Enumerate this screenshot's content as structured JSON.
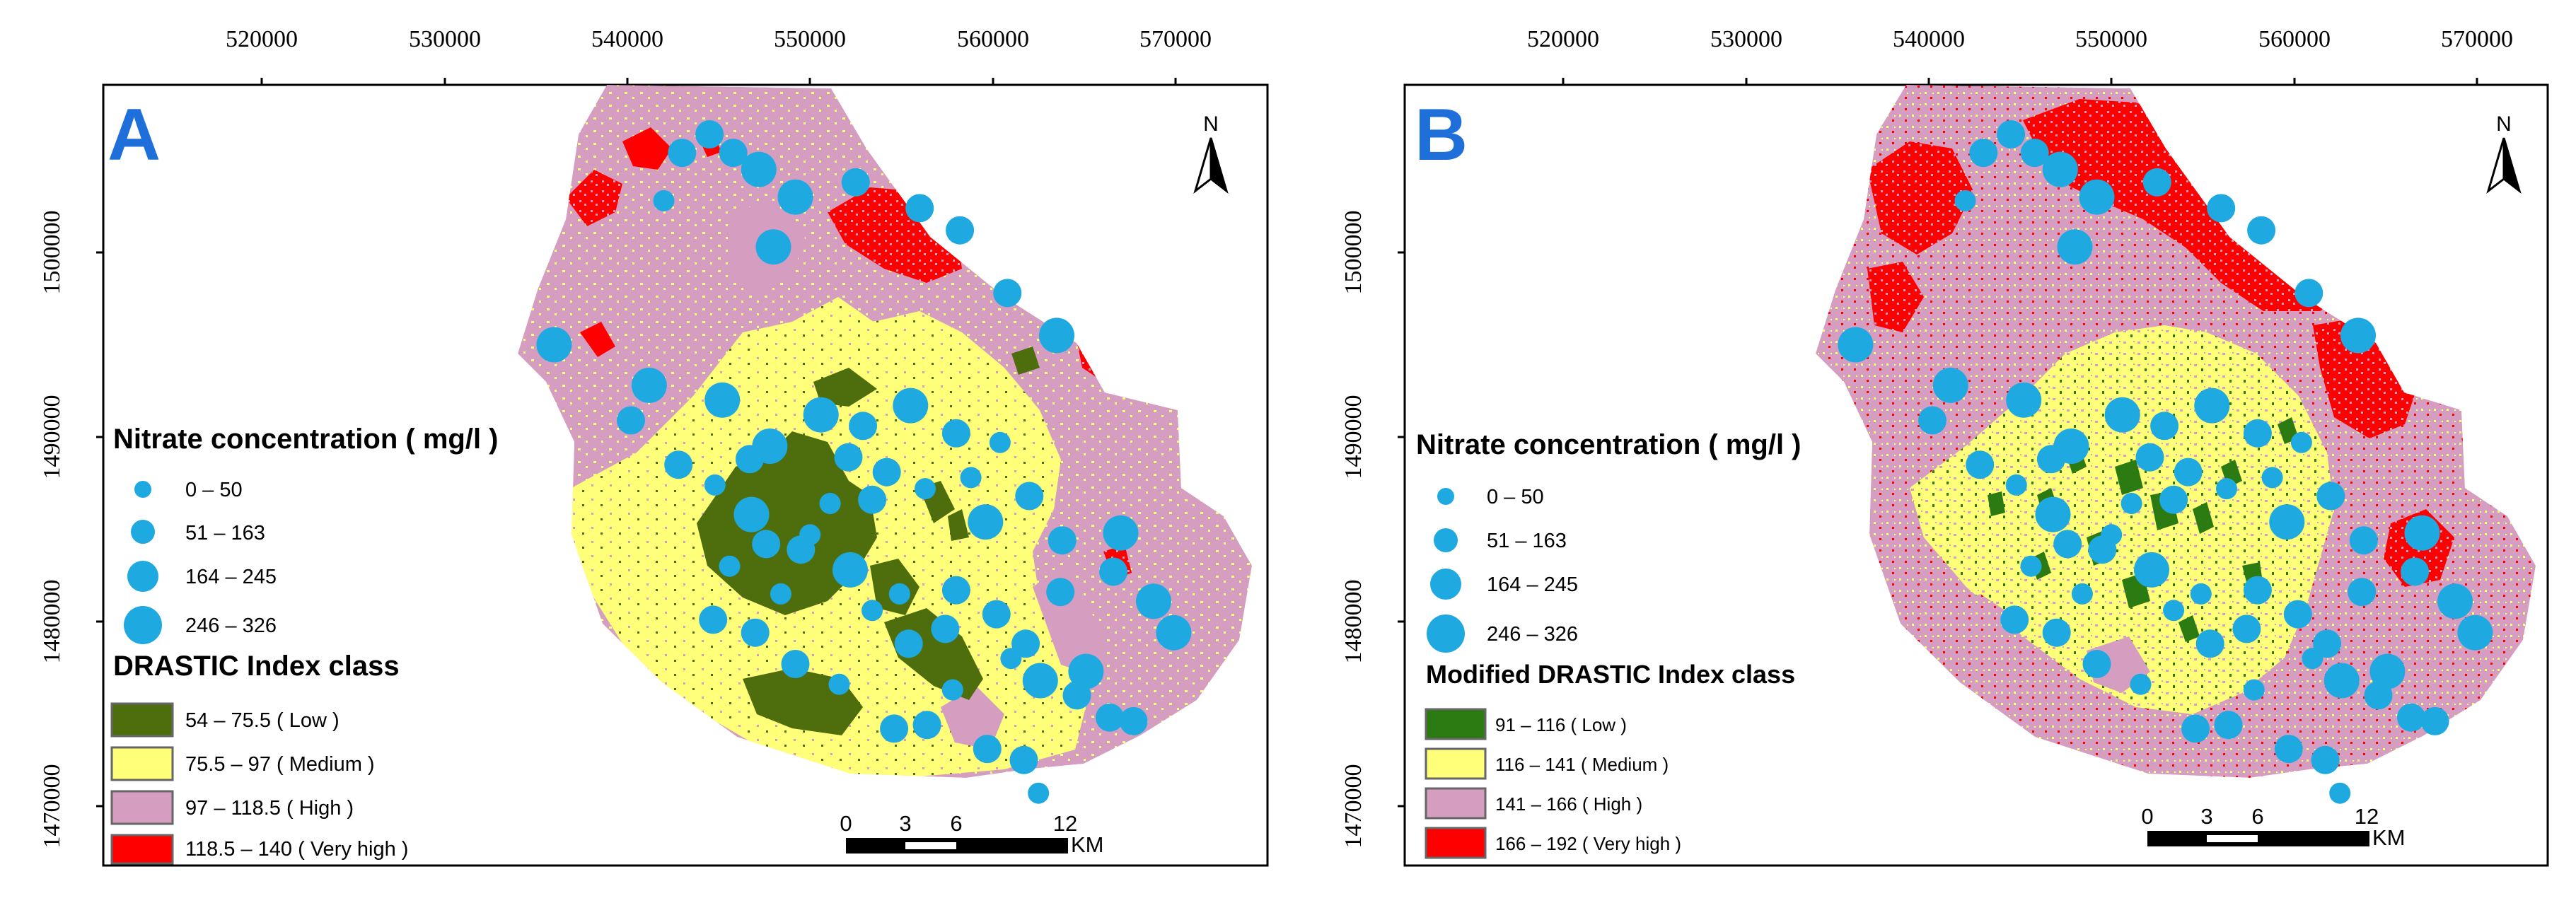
{
  "colors": {
    "low_a": "#4e6e0e",
    "low_b": "#2b7a12",
    "medium": "#ffff7a",
    "high": "#d59ec1",
    "very_high": "#ff0000",
    "well": "#1fa9e1",
    "panel_letter": "#1e6fd9"
  },
  "axes": {
    "x_ticks": [
      "520000",
      "530000",
      "540000",
      "550000",
      "560000",
      "570000"
    ],
    "y_ticks": [
      "1500000",
      "1490000",
      "1480000",
      "1470000"
    ]
  },
  "nitrate_legend": {
    "title": "Nitrate concentration ( mg/l )",
    "classes": [
      "0 – 50",
      "51 – 163",
      "164 – 245",
      "246 – 326"
    ]
  },
  "north_arrow": {
    "label": "N",
    "icon": "north-arrow-icon"
  },
  "scale_bar": {
    "labels": [
      "0",
      "3",
      "6",
      "12"
    ],
    "unit": "KM"
  },
  "panels": [
    {
      "letter": "A",
      "legend_title": "DRASTIC Index class",
      "classes": [
        "54 – 75.5 ( Low )",
        "75.5 – 97 ( Medium )",
        "97 – 118.5 ( High )",
        "118.5 – 140 ( Very high )"
      ]
    },
    {
      "letter": "B",
      "legend_title": "Modified DRASTIC Index class",
      "classes": [
        "91 – 116 ( Low )",
        "116 – 141 ( Medium )",
        "141 – 166 ( High )",
        "166 – 192 ( Very high )"
      ]
    }
  ],
  "wells": [
    {
      "x": 548000,
      "y": 1500300,
      "c": 3
    },
    {
      "x": 543000,
      "y": 1505400,
      "c": 2
    },
    {
      "x": 542000,
      "y": 1502800,
      "c": 1
    },
    {
      "x": 544500,
      "y": 1506400,
      "c": 2
    },
    {
      "x": 545800,
      "y": 1505400,
      "c": 2
    },
    {
      "x": 547200,
      "y": 1504500,
      "c": 3
    },
    {
      "x": 549200,
      "y": 1503000,
      "c": 3
    },
    {
      "x": 552500,
      "y": 1503800,
      "c": 2
    },
    {
      "x": 556000,
      "y": 1502400,
      "c": 2
    },
    {
      "x": 558200,
      "y": 1501200,
      "c": 2
    },
    {
      "x": 560800,
      "y": 1497800,
      "c": 2
    },
    {
      "x": 563500,
      "y": 1495500,
      "c": 3
    },
    {
      "x": 536000,
      "y": 1495000,
      "c": 3
    },
    {
      "x": 541200,
      "y": 1492800,
      "c": 3
    },
    {
      "x": 540200,
      "y": 1490900,
      "c": 2
    },
    {
      "x": 545200,
      "y": 1492000,
      "c": 3
    },
    {
      "x": 547800,
      "y": 1489500,
      "c": 3
    },
    {
      "x": 550600,
      "y": 1491200,
      "c": 3
    },
    {
      "x": 555500,
      "y": 1491700,
      "c": 3
    },
    {
      "x": 552900,
      "y": 1490600,
      "c": 2
    },
    {
      "x": 558000,
      "y": 1490200,
      "c": 2
    },
    {
      "x": 560400,
      "y": 1489700,
      "c": 1
    },
    {
      "x": 558800,
      "y": 1487800,
      "c": 1
    },
    {
      "x": 562000,
      "y": 1486800,
      "c": 2
    },
    {
      "x": 546800,
      "y": 1485800,
      "c": 3
    },
    {
      "x": 547600,
      "y": 1484200,
      "c": 2
    },
    {
      "x": 549500,
      "y": 1483900,
      "c": 2
    },
    {
      "x": 552200,
      "y": 1482800,
      "c": 3
    },
    {
      "x": 554900,
      "y": 1481500,
      "c": 1
    },
    {
      "x": 558000,
      "y": 1481700,
      "c": 2
    },
    {
      "x": 557400,
      "y": 1479600,
      "c": 2
    },
    {
      "x": 560200,
      "y": 1480400,
      "c": 2
    },
    {
      "x": 561800,
      "y": 1478800,
      "c": 2
    },
    {
      "x": 562600,
      "y": 1476800,
      "c": 3
    },
    {
      "x": 564600,
      "y": 1476000,
      "c": 2
    },
    {
      "x": 566400,
      "y": 1474800,
      "c": 2
    },
    {
      "x": 565100,
      "y": 1477300,
      "c": 3
    },
    {
      "x": 553400,
      "y": 1486600,
      "c": 2
    },
    {
      "x": 551100,
      "y": 1486400,
      "c": 1
    },
    {
      "x": 552100,
      "y": 1488900,
      "c": 2
    },
    {
      "x": 554200,
      "y": 1488100,
      "c": 2
    },
    {
      "x": 556300,
      "y": 1487200,
      "c": 1
    },
    {
      "x": 559600,
      "y": 1485400,
      "c": 3
    },
    {
      "x": 563800,
      "y": 1484400,
      "c": 2
    },
    {
      "x": 545600,
      "y": 1483000,
      "c": 1
    },
    {
      "x": 544700,
      "y": 1480100,
      "c": 2
    },
    {
      "x": 547000,
      "y": 1479400,
      "c": 2
    },
    {
      "x": 549200,
      "y": 1477700,
      "c": 2
    },
    {
      "x": 551600,
      "y": 1476600,
      "c": 1
    },
    {
      "x": 554600,
      "y": 1474200,
      "c": 2
    },
    {
      "x": 556400,
      "y": 1474400,
      "c": 2
    },
    {
      "x": 559700,
      "y": 1473100,
      "c": 2
    },
    {
      "x": 561700,
      "y": 1472500,
      "c": 2
    },
    {
      "x": 562500,
      "y": 1470700,
      "c": 1
    },
    {
      "x": 542800,
      "y": 1488500,
      "c": 2
    },
    {
      "x": 544800,
      "y": 1487400,
      "c": 1
    },
    {
      "x": 546700,
      "y": 1488800,
      "c": 2
    },
    {
      "x": 550000,
      "y": 1484700,
      "c": 1
    },
    {
      "x": 555400,
      "y": 1478800,
      "c": 2
    },
    {
      "x": 557800,
      "y": 1476300,
      "c": 1
    },
    {
      "x": 563700,
      "y": 1481600,
      "c": 2
    },
    {
      "x": 567000,
      "y": 1484800,
      "c": 3
    },
    {
      "x": 566600,
      "y": 1482700,
      "c": 2
    },
    {
      "x": 568800,
      "y": 1481100,
      "c": 3
    },
    {
      "x": 569900,
      "y": 1479400,
      "c": 3
    },
    {
      "x": 567700,
      "y": 1474600,
      "c": 2
    },
    {
      "x": 561000,
      "y": 1478000,
      "c": 1
    },
    {
      "x": 548400,
      "y": 1481500,
      "c": 1
    },
    {
      "x": 553400,
      "y": 1480600,
      "c": 1
    }
  ]
}
